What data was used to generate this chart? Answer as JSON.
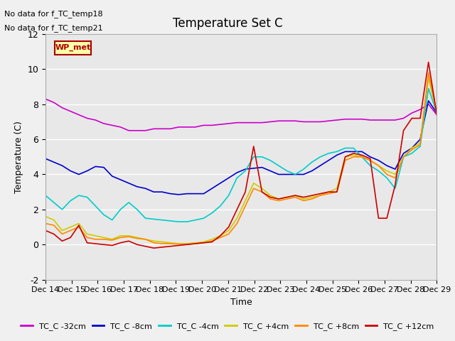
{
  "title": "Temperature Set C",
  "xlabel": "Time",
  "ylabel": "Temperature (C)",
  "no_data_text": [
    "No data for f_TC_temp18",
    "No data for f_TC_temp21"
  ],
  "wp_met_label": "WP_met",
  "ylim": [
    -2,
    12
  ],
  "yticks": [
    -2,
    0,
    2,
    4,
    6,
    8,
    10,
    12
  ],
  "x_labels": [
    "Dec 14",
    "Dec 15",
    "Dec 16",
    "Dec 17",
    "Dec 18",
    "Dec 19",
    "Dec 20",
    "Dec 21",
    "Dec 22",
    "Dec 23",
    "Dec 24",
    "Dec 25",
    "Dec 26",
    "Dec 27",
    "Dec 28",
    "Dec 29"
  ],
  "series": {
    "TC_C -32cm": {
      "color": "#cc00cc",
      "data": [
        8.3,
        8.1,
        7.8,
        7.6,
        7.4,
        7.2,
        7.1,
        6.9,
        6.8,
        6.7,
        6.5,
        6.5,
        6.5,
        6.6,
        6.6,
        6.6,
        6.7,
        6.7,
        6.7,
        6.8,
        6.8,
        6.85,
        6.9,
        6.95,
        6.95,
        6.95,
        6.95,
        7.0,
        7.05,
        7.05,
        7.05,
        7.0,
        7.0,
        7.0,
        7.05,
        7.1,
        7.15,
        7.15,
        7.15,
        7.1,
        7.1,
        7.1,
        7.1,
        7.2,
        7.5,
        7.7,
        8.0,
        7.4
      ]
    },
    "TC_C -8cm": {
      "color": "#0000cc",
      "data": [
        4.9,
        4.7,
        4.5,
        4.2,
        4.0,
        4.2,
        4.45,
        4.4,
        3.9,
        3.7,
        3.5,
        3.3,
        3.2,
        3.0,
        3.0,
        2.9,
        2.85,
        2.9,
        2.9,
        2.9,
        3.2,
        3.5,
        3.8,
        4.1,
        4.3,
        4.35,
        4.4,
        4.2,
        4.0,
        4.0,
        4.0,
        4.0,
        4.2,
        4.5,
        4.8,
        5.1,
        5.3,
        5.3,
        5.3,
        5.0,
        4.8,
        4.5,
        4.3,
        5.2,
        5.5,
        6.0,
        8.2,
        7.5
      ]
    },
    "TC_C -4cm": {
      "color": "#00cccc",
      "data": [
        2.8,
        2.4,
        2.0,
        2.5,
        2.8,
        2.7,
        2.2,
        1.7,
        1.4,
        2.0,
        2.4,
        2.0,
        1.5,
        1.45,
        1.4,
        1.35,
        1.3,
        1.3,
        1.4,
        1.5,
        1.8,
        2.2,
        2.8,
        3.8,
        4.2,
        5.0,
        5.0,
        4.8,
        4.5,
        4.2,
        4.0,
        4.3,
        4.7,
        5.0,
        5.2,
        5.3,
        5.5,
        5.5,
        5.0,
        4.5,
        4.2,
        3.8,
        3.2,
        5.0,
        5.2,
        5.6,
        8.9,
        7.5
      ]
    },
    "TC_C +4cm": {
      "color": "#cccc00",
      "data": [
        1.6,
        1.4,
        0.8,
        1.0,
        1.2,
        0.6,
        0.5,
        0.4,
        0.3,
        0.5,
        0.5,
        0.4,
        0.3,
        0.2,
        0.15,
        0.1,
        0.05,
        0.05,
        0.1,
        0.15,
        0.3,
        0.5,
        0.8,
        1.5,
        2.5,
        3.5,
        3.2,
        2.8,
        2.6,
        2.7,
        2.8,
        2.6,
        2.7,
        2.8,
        3.0,
        3.2,
        5.0,
        5.1,
        5.0,
        4.8,
        4.5,
        4.2,
        4.0,
        5.0,
        5.5,
        5.8,
        9.5,
        7.5
      ]
    },
    "TC_C +8cm": {
      "color": "#ff8800",
      "data": [
        1.2,
        1.1,
        0.6,
        0.8,
        1.0,
        0.4,
        0.3,
        0.3,
        0.25,
        0.4,
        0.45,
        0.35,
        0.3,
        0.1,
        0.05,
        0.05,
        0.02,
        0.02,
        0.05,
        0.1,
        0.2,
        0.4,
        0.6,
        1.2,
        2.2,
        3.2,
        3.0,
        2.6,
        2.5,
        2.6,
        2.7,
        2.5,
        2.6,
        2.8,
        2.9,
        3.0,
        4.8,
        5.0,
        5.0,
        4.8,
        4.5,
        4.0,
        3.8,
        5.0,
        5.4,
        5.7,
        9.8,
        7.5
      ]
    },
    "TC_C +12cm": {
      "color": "#cc0000",
      "data": [
        0.8,
        0.6,
        0.2,
        0.4,
        1.1,
        0.1,
        0.05,
        0.0,
        -0.05,
        0.1,
        0.2,
        0.0,
        -0.1,
        -0.2,
        -0.15,
        -0.1,
        -0.05,
        0.0,
        0.05,
        0.1,
        0.15,
        0.5,
        1.0,
        2.0,
        3.0,
        5.6,
        3.0,
        2.7,
        2.6,
        2.7,
        2.8,
        2.7,
        2.8,
        2.9,
        3.0,
        3.0,
        5.0,
        5.2,
        5.1,
        4.9,
        1.5,
        1.5,
        3.4,
        6.5,
        7.2,
        7.2,
        10.4,
        7.4
      ]
    }
  },
  "background_color": "#f0f0f0",
  "plot_bg_color": "#e8e8e8",
  "grid_color": "#ffffff",
  "legend_colors": {
    "TC_C -32cm": "#cc00cc",
    "TC_C -8cm": "#0000cc",
    "TC_C -4cm": "#00cccc",
    "TC_C +4cm": "#cccc00",
    "TC_C +8cm": "#ff8800",
    "TC_C +12cm": "#cc0000"
  }
}
